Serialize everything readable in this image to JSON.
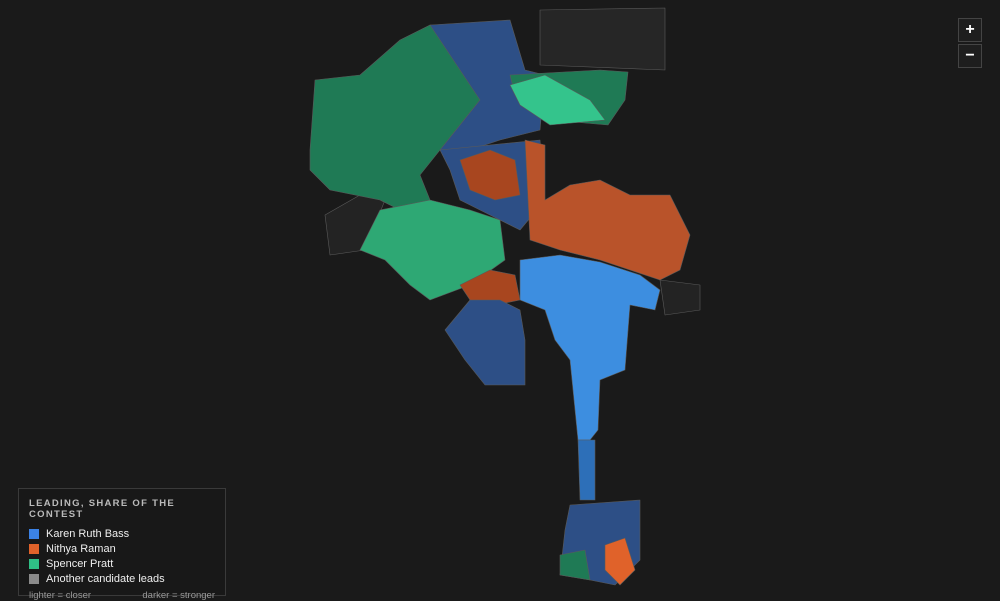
{
  "zoom_controls": {
    "zoom_in": "+",
    "zoom_out": "−"
  },
  "legend": {
    "title": "LEADING, SHARE OF THE CONTEST",
    "items": [
      {
        "label": "Karen Ruth Bass",
        "color": "#3b82e6"
      },
      {
        "label": "Nithya Raman",
        "color": "#e0622a"
      },
      {
        "label": "Spencer Pratt",
        "color": "#2fbf85"
      },
      {
        "label": "Another candidate leads",
        "color": "#8a8a8a"
      }
    ],
    "notes": {
      "lighter": "lighter = closer",
      "darker": "darker = stronger"
    }
  }
}
